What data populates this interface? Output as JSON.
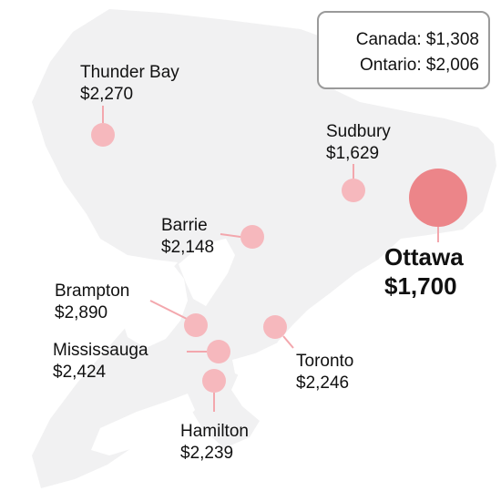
{
  "summary": {
    "canada_label": "Canada: $1,308",
    "ontario_label": "Ontario: $2,006"
  },
  "colors": {
    "land": "#f1f1f2",
    "water": "#ffffff",
    "marker": "#f6b8bd",
    "marker_highlight": "#ec8589",
    "leader": "#f3a7ad"
  },
  "cities": [
    {
      "id": "thunder-bay",
      "name": "Thunder Bay",
      "value": "$2,270",
      "rent": 2270,
      "highlight": false
    },
    {
      "id": "sudbury",
      "name": "Sudbury",
      "value": "$1,629",
      "rent": 1629,
      "highlight": false
    },
    {
      "id": "barrie",
      "name": "Barrie",
      "value": "$2,148",
      "rent": 2148,
      "highlight": false
    },
    {
      "id": "ottawa",
      "name": "Ottawa",
      "value": "$1,700",
      "rent": 1700,
      "highlight": true
    },
    {
      "id": "brampton",
      "name": "Brampton",
      "value": "$2,890",
      "rent": 2890,
      "highlight": false
    },
    {
      "id": "mississauga",
      "name": "Mississauga",
      "value": "$2,424",
      "rent": 2424,
      "highlight": false
    },
    {
      "id": "toronto",
      "name": "Toronto",
      "value": "$2,246",
      "rent": 2246,
      "highlight": false
    },
    {
      "id": "hamilton",
      "name": "Hamilton",
      "value": "$2,239",
      "rent": 2239,
      "highlight": false
    }
  ]
}
